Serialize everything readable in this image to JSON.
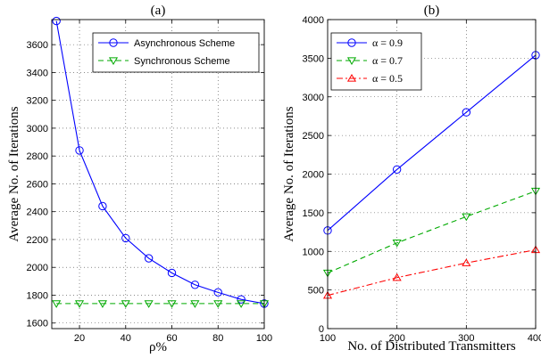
{
  "chart_data": [
    {
      "type": "line",
      "title": "(a)",
      "xlabel": "ρ%",
      "ylabel": "Average No. of Iterations",
      "xlim": [
        8,
        100
      ],
      "ylim": [
        1560,
        3780
      ],
      "xticks": [
        20,
        40,
        60,
        80,
        100
      ],
      "yticks": [
        1600,
        1800,
        2000,
        2200,
        2400,
        2600,
        2800,
        3000,
        3200,
        3400,
        3600
      ],
      "grid": true,
      "legend_position": "top-right",
      "x": [
        10,
        20,
        30,
        40,
        50,
        60,
        70,
        80,
        90,
        100
      ],
      "series": [
        {
          "name": "Asynchronous Scheme",
          "color": "#0000ff",
          "marker": "circle",
          "dash": "solid",
          "values": [
            3770,
            2840,
            2440,
            2210,
            2065,
            1960,
            1875,
            1820,
            1770,
            1740
          ]
        },
        {
          "name": "Synchronous Scheme",
          "color": "#00aa00",
          "marker": "triangle-down",
          "dash": "dashed",
          "values": [
            1740,
            1740,
            1740,
            1740,
            1740,
            1740,
            1740,
            1740,
            1740,
            1740
          ]
        }
      ]
    },
    {
      "type": "line",
      "title": "(b)",
      "xlabel": "No. of Distributed Transmitters",
      "ylabel": "Average No. of Iterations",
      "xlim": [
        100,
        400
      ],
      "ylim": [
        0,
        4000
      ],
      "xticks": [
        100,
        200,
        300,
        400
      ],
      "yticks": [
        0,
        500,
        1000,
        1500,
        2000,
        2500,
        3000,
        3500,
        4000
      ],
      "grid": true,
      "legend_position": "top-left",
      "x": [
        100,
        200,
        300,
        400
      ],
      "series": [
        {
          "name": "α = 0.9",
          "color": "#0000ff",
          "marker": "circle",
          "dash": "solid",
          "values": [
            1270,
            2060,
            2800,
            3540
          ]
        },
        {
          "name": "α = 0.7",
          "color": "#00aa00",
          "marker": "triangle-down",
          "dash": "dashed",
          "values": [
            720,
            1110,
            1450,
            1780
          ]
        },
        {
          "name": "α = 0.5",
          "color": "#ff0000",
          "marker": "triangle-up",
          "dash": "dashdot",
          "values": [
            430,
            660,
            850,
            1020
          ]
        }
      ]
    }
  ]
}
